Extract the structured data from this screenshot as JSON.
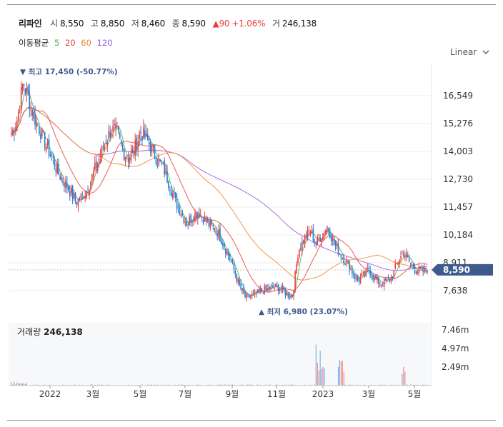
{
  "header": {
    "name": "리파인",
    "open_label": "시",
    "open": "8,550",
    "high_label": "고",
    "high": "8,850",
    "low_label": "저",
    "low": "8,460",
    "close_label": "종",
    "close": "8,590",
    "change": "▲90",
    "change_pct": "+1.06%",
    "volume_label": "거",
    "volume": "246,138"
  },
  "ma_legend": {
    "label": "이동평균",
    "items": [
      {
        "name": "5",
        "color": "#4caf50"
      },
      {
        "name": "20",
        "color": "#e8403a"
      },
      {
        "name": "60",
        "color": "#f0862a"
      },
      {
        "name": "120",
        "color": "#9a57e0"
      }
    ]
  },
  "scale_button": "Linear",
  "volume_panel": {
    "label": "거래량",
    "value": "246,138"
  },
  "colors": {
    "up": "#e8403a",
    "down": "#2a7bd4",
    "current_price_box": "#3f5a8c",
    "annotation": "#3f5a8c"
  },
  "chart_data": {
    "type": "candlestick",
    "y_ticks": [
      "16,549",
      "15,276",
      "14,003",
      "12,730",
      "11,457",
      "10,184",
      "8,911",
      "7,638"
    ],
    "y_tick_values": [
      16549,
      15276,
      14003,
      12730,
      11457,
      10184,
      8911,
      7638
    ],
    "x_ticks": [
      "2022",
      "3월",
      "5월",
      "7월",
      "9월",
      "11월",
      "2023",
      "3월",
      "5월"
    ],
    "current_price": 8590,
    "current_price_label": "8,590",
    "max_annotation": {
      "text": "최고 17,450 (-50.77%)",
      "value": 17450,
      "marker": "▼"
    },
    "min_annotation": {
      "text": "최저 6,980 (23.07%)",
      "value": 6980,
      "marker": "▲"
    },
    "volume_ticks": [
      "7.46m",
      "4.97m",
      "2.49m"
    ],
    "volume_tick_values": [
      7460000,
      4970000,
      2490000
    ],
    "close_series_approx": [
      14800,
      15500,
      17200,
      16300,
      15500,
      14900,
      14200,
      13700,
      13000,
      12600,
      12200,
      11700,
      11900,
      12300,
      13000,
      13700,
      14400,
      15000,
      14900,
      14000,
      13700,
      14100,
      14900,
      14600,
      14100,
      13600,
      13200,
      12500,
      11700,
      11200,
      10700,
      11100,
      11200,
      10900,
      10600,
      10400,
      9900,
      9300,
      8600,
      7800,
      7300,
      7400,
      7500,
      7650,
      7700,
      7800,
      7750,
      7500,
      7400,
      9500,
      10000,
      10400,
      9800,
      10200,
      10600,
      9800,
      9400,
      9000,
      8600,
      8100,
      8300,
      8600,
      8200,
      7950,
      8050,
      8250,
      9000,
      9400,
      8900,
      8600,
      8500,
      8590
    ]
  }
}
